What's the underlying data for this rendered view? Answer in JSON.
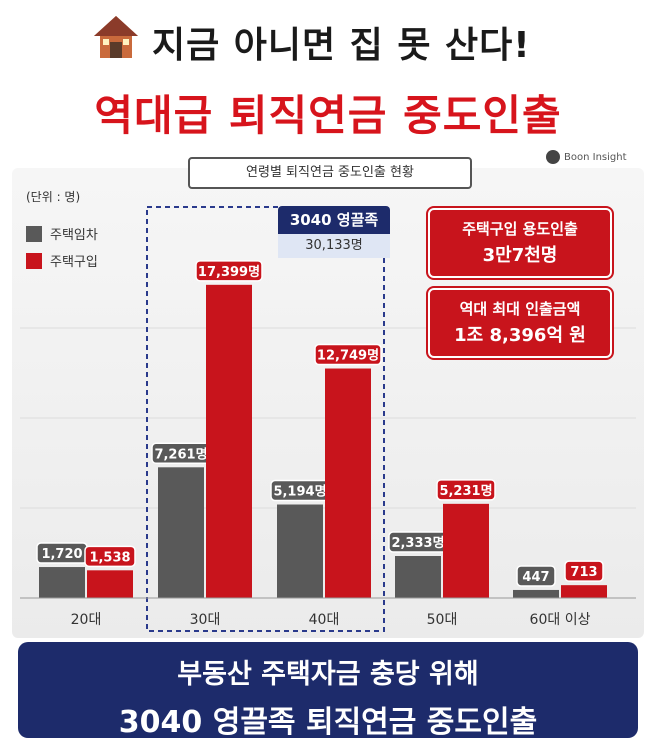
{
  "header": {
    "title_line1": "지금 아니면 집 못 산다!",
    "title_line2": "역대급 퇴직연금 중도인출"
  },
  "logo_text": "Boon Insight",
  "chart_data": {
    "type": "bar",
    "title": "",
    "subtitle": "연령별 퇴직연금 중도인출 현황",
    "unit_label": "(단위 : 명)",
    "categories": [
      "20대",
      "30대",
      "40대",
      "50대",
      "60대 이상"
    ],
    "series": [
      {
        "name": "주택임차",
        "color": "#595959",
        "values": [
          1720,
          7261,
          5194,
          2333,
          447
        ],
        "labels": [
          "1,720",
          "7,261명",
          "5,194명",
          "2,333명",
          "447"
        ]
      },
      {
        "name": "주택구입",
        "color": "#c8141c",
        "values": [
          1538,
          17399,
          12749,
          5231,
          713
        ],
        "labels": [
          "1,538",
          "17,399명",
          "12,749명",
          "5,231명",
          "713"
        ]
      }
    ],
    "ylim": [
      0,
      20000
    ],
    "legend_position": "top-left",
    "highlight": {
      "label": "3040 영끌족",
      "value": "30,133명"
    }
  },
  "annotations": [
    {
      "line1": "주택구입 용도인출",
      "line2": "3만7천명"
    },
    {
      "line1": "역대 최대 인출금액",
      "line2": "1조 8,396억 원"
    }
  ],
  "footer": {
    "line1": "부동산 주택자금 충당 위해",
    "line2": "3040 영끌족 퇴직연금 중도인출"
  }
}
